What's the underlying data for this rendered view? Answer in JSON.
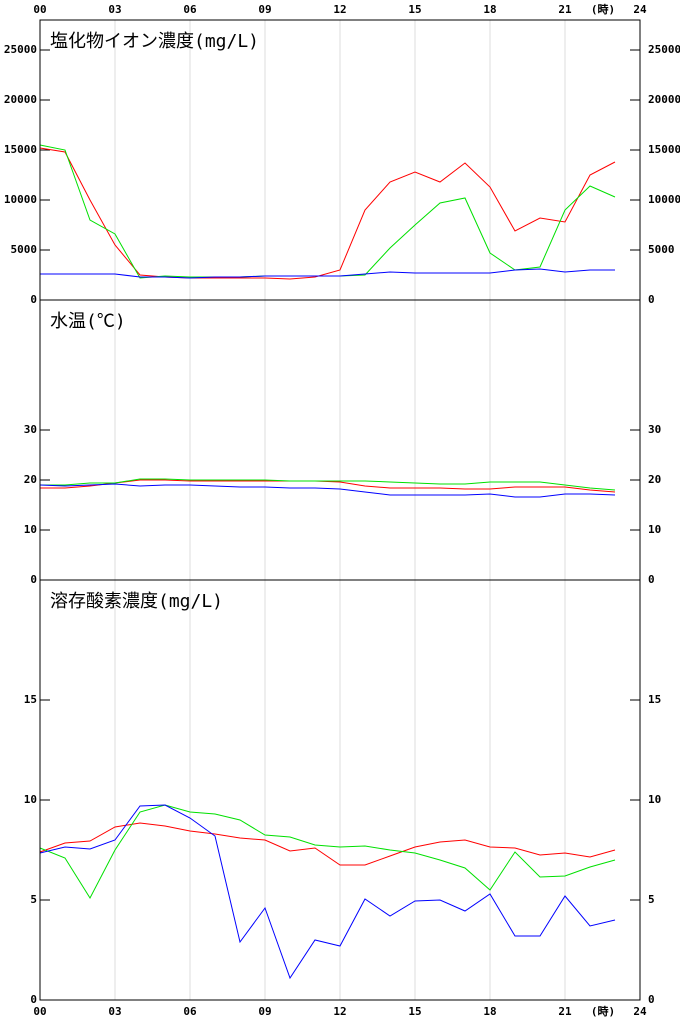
{
  "chart_data": [
    {
      "type": "line",
      "title": "塩化物イオン濃度(mg/L)",
      "x_label": "(時)",
      "x_label_position": "top",
      "x": [
        0,
        1,
        2,
        3,
        4,
        5,
        6,
        7,
        8,
        9,
        10,
        11,
        12,
        13,
        14,
        15,
        16,
        17,
        18,
        19,
        20,
        21,
        22,
        23
      ],
      "xlim": [
        0,
        24
      ],
      "xticks": [
        {
          "value": 0,
          "label": "00"
        },
        {
          "value": 3,
          "label": "03"
        },
        {
          "value": 6,
          "label": "06"
        },
        {
          "value": 9,
          "label": "09"
        },
        {
          "value": 12,
          "label": "12"
        },
        {
          "value": 15,
          "label": "15"
        },
        {
          "value": 18,
          "label": "18"
        },
        {
          "value": 21,
          "label": "21"
        },
        {
          "value": 24,
          "label": "24"
        }
      ],
      "ylim": [
        0,
        28000
      ],
      "yticks": [
        0,
        5000,
        10000,
        15000,
        20000,
        25000
      ],
      "grid": true,
      "series": [
        {
          "color": "#ff0000",
          "values": [
            15200,
            14800,
            10000,
            5500,
            2500,
            2300,
            2200,
            2200,
            2200,
            2200,
            2100,
            2300,
            3000,
            9000,
            11800,
            12800,
            11800,
            13700,
            11300,
            6900,
            8200,
            7800,
            12500,
            13800
          ]
        },
        {
          "color": "#00e000",
          "values": [
            15500,
            15000,
            8000,
            6600,
            2200,
            2400,
            2300,
            2300,
            2300,
            2400,
            2400,
            2400,
            2400,
            2500,
            5200,
            7500,
            9700,
            10200,
            4700,
            3000,
            3300,
            9000,
            11400,
            10300
          ]
        },
        {
          "color": "#0000ff",
          "values": [
            2600,
            2600,
            2600,
            2600,
            2300,
            2300,
            2200,
            2300,
            2300,
            2400,
            2400,
            2400,
            2400,
            2600,
            2800,
            2700,
            2700,
            2700,
            2700,
            3000,
            3100,
            2800,
            3000,
            3000
          ]
        }
      ]
    },
    {
      "type": "line",
      "title": "水温(℃)",
      "x": [
        0,
        1,
        2,
        3,
        4,
        5,
        6,
        7,
        8,
        9,
        10,
        11,
        12,
        13,
        14,
        15,
        16,
        17,
        18,
        19,
        20,
        21,
        22,
        23
      ],
      "xlim": [
        0,
        24
      ],
      "xticks": [
        3,
        6,
        9,
        12,
        15,
        18,
        21
      ],
      "ylim": [
        0,
        56
      ],
      "yticks": [
        0,
        10,
        20,
        30
      ],
      "grid": true,
      "series": [
        {
          "color": "#ff0000",
          "values": [
            18.4,
            18.4,
            18.8,
            19.4,
            20,
            20,
            19.8,
            19.8,
            19.8,
            19.8,
            19.8,
            19.8,
            19.6,
            18.8,
            18.4,
            18.4,
            18.4,
            18.2,
            18.2,
            18.6,
            18.6,
            18.6,
            18,
            17.6
          ]
        },
        {
          "color": "#00e000",
          "values": [
            19,
            19,
            19.4,
            19.4,
            20.2,
            20.2,
            20,
            20,
            20,
            20,
            19.8,
            19.8,
            19.8,
            19.8,
            19.6,
            19.4,
            19.2,
            19.2,
            19.6,
            19.6,
            19.6,
            19,
            18.4,
            18
          ]
        },
        {
          "color": "#0000ff",
          "values": [
            19,
            18.8,
            19,
            19.2,
            18.8,
            19,
            19,
            18.8,
            18.6,
            18.6,
            18.4,
            18.4,
            18.2,
            17.6,
            17,
            17,
            17,
            17,
            17.2,
            16.6,
            16.6,
            17.2,
            17.2,
            17
          ]
        }
      ]
    },
    {
      "type": "line",
      "title": "溶存酸素濃度(mg/L)",
      "x_label": "(時)",
      "x_label_position": "bottom",
      "x": [
        0,
        1,
        2,
        3,
        4,
        5,
        6,
        7,
        8,
        9,
        10,
        11,
        12,
        13,
        14,
        15,
        16,
        17,
        18,
        19,
        20,
        21,
        22,
        23
      ],
      "xlim": [
        0,
        24
      ],
      "xticks": [
        {
          "value": 0,
          "label": "00"
        },
        {
          "value": 3,
          "label": "03"
        },
        {
          "value": 6,
          "label": "06"
        },
        {
          "value": 9,
          "label": "09"
        },
        {
          "value": 12,
          "label": "12"
        },
        {
          "value": 15,
          "label": "15"
        },
        {
          "value": 18,
          "label": "18"
        },
        {
          "value": 21,
          "label": "21"
        },
        {
          "value": 24,
          "label": "24"
        }
      ],
      "ylim": [
        0,
        21
      ],
      "yticks": [
        0,
        5,
        10,
        15
      ],
      "grid": true,
      "series": [
        {
          "color": "#ff0000",
          "values": [
            7.4,
            7.85,
            7.95,
            8.65,
            8.85,
            8.7,
            8.45,
            8.3,
            8.1,
            8.0,
            7.45,
            7.6,
            6.75,
            6.75,
            7.2,
            7.65,
            7.9,
            8.0,
            7.65,
            7.6,
            7.25,
            7.35,
            7.15,
            7.5
          ]
        },
        {
          "color": "#00e000",
          "values": [
            7.6,
            7.1,
            5.1,
            7.5,
            9.4,
            9.75,
            9.4,
            9.3,
            9.0,
            8.25,
            8.15,
            7.75,
            7.65,
            7.7,
            7.5,
            7.35,
            7.0,
            6.6,
            5.5,
            7.4,
            6.15,
            6.2,
            6.65,
            7.0
          ]
        },
        {
          "color": "#0000ff",
          "values": [
            7.35,
            7.65,
            7.55,
            8.0,
            9.7,
            9.75,
            9.1,
            8.2,
            2.9,
            4.6,
            1.1,
            3.0,
            2.7,
            5.05,
            4.2,
            4.95,
            5.0,
            4.45,
            5.3,
            3.2,
            3.2,
            5.2,
            3.7,
            4.0
          ]
        }
      ]
    }
  ]
}
